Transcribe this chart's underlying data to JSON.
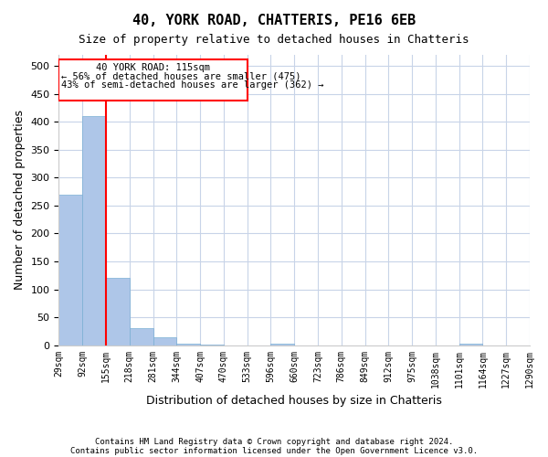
{
  "title1": "40, YORK ROAD, CHATTERIS, PE16 6EB",
  "title2": "Size of property relative to detached houses in Chatteris",
  "xlabel": "Distribution of detached houses by size in Chatteris",
  "ylabel": "Number of detached properties",
  "footnote1": "Contains HM Land Registry data © Crown copyright and database right 2024.",
  "footnote2": "Contains public sector information licensed under the Open Government Licence v3.0.",
  "annotation_line1": "40 YORK ROAD: 115sqm",
  "annotation_line2": "← 56% of detached houses are smaller (475)",
  "annotation_line3": "43% of semi-detached houses are larger (362) →",
  "tick_labels": [
    "29sqm",
    "92sqm",
    "155sqm",
    "218sqm",
    "281sqm",
    "344sqm",
    "407sqm",
    "470sqm",
    "533sqm",
    "596sqm",
    "660sqm",
    "723sqm",
    "786sqm",
    "849sqm",
    "912sqm",
    "975sqm",
    "1038sqm",
    "1101sqm",
    "1164sqm",
    "1227sqm",
    "1290sqm"
  ],
  "bar_heights": [
    270,
    410,
    120,
    30,
    15,
    3,
    1,
    0,
    0,
    3,
    0,
    0,
    0,
    0,
    0,
    0,
    0,
    3,
    0,
    0
  ],
  "bar_color": "#aec6e8",
  "bar_edge_color": "#7aafd4",
  "red_line_x": 1.5,
  "ylim": [
    0,
    520
  ],
  "yticks": [
    0,
    50,
    100,
    150,
    200,
    250,
    300,
    350,
    400,
    450,
    500
  ],
  "background_color": "#ffffff",
  "grid_color": "#c8d4e8"
}
